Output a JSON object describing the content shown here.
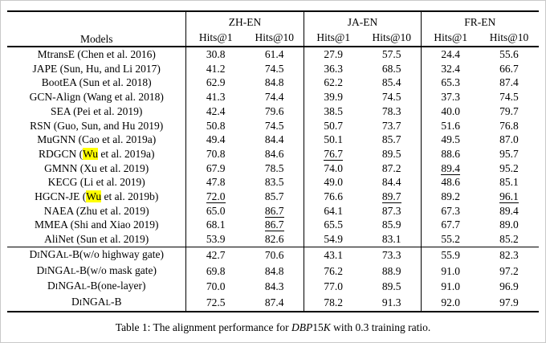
{
  "table": {
    "header": {
      "models_label": "Models",
      "groups": [
        {
          "label": "ZH-EN"
        },
        {
          "label": "JA-EN"
        },
        {
          "label": "FR-EN"
        }
      ],
      "metric_labels": [
        "Hits@1",
        "Hits@10"
      ]
    },
    "highlight_color": "#ffff00",
    "sections": [
      {
        "name": "baselines",
        "rows": [
          {
            "label_parts": [
              {
                "t": "MtransE (Chen et al. 2016)"
              }
            ],
            "cells": [
              {
                "v": "30.8"
              },
              {
                "v": "61.4"
              },
              {
                "v": "27.9"
              },
              {
                "v": "57.5"
              },
              {
                "v": "24.4"
              },
              {
                "v": "55.6"
              }
            ]
          },
          {
            "label_parts": [
              {
                "t": "JAPE (Sun, Hu, and Li 2017)"
              }
            ],
            "cells": [
              {
                "v": "41.2"
              },
              {
                "v": "74.5"
              },
              {
                "v": "36.3"
              },
              {
                "v": "68.5"
              },
              {
                "v": "32.4"
              },
              {
                "v": "66.7"
              }
            ]
          },
          {
            "label_parts": [
              {
                "t": "BootEA (Sun et al. 2018)"
              }
            ],
            "cells": [
              {
                "v": "62.9"
              },
              {
                "v": "84.8"
              },
              {
                "v": "62.2"
              },
              {
                "v": "85.4"
              },
              {
                "v": "65.3"
              },
              {
                "v": "87.4"
              }
            ]
          },
          {
            "label_parts": [
              {
                "t": "GCN-Align (Wang et al. 2018)"
              }
            ],
            "cells": [
              {
                "v": "41.3"
              },
              {
                "v": "74.4"
              },
              {
                "v": "39.9"
              },
              {
                "v": "74.5"
              },
              {
                "v": "37.3"
              },
              {
                "v": "74.5"
              }
            ]
          },
          {
            "label_parts": [
              {
                "t": "SEA (Pei et al. 2019)"
              }
            ],
            "cells": [
              {
                "v": "42.4"
              },
              {
                "v": "79.6"
              },
              {
                "v": "38.5"
              },
              {
                "v": "78.3"
              },
              {
                "v": "40.0"
              },
              {
                "v": "79.7"
              }
            ]
          },
          {
            "label_parts": [
              {
                "t": "RSN  (Guo, Sun, and Hu 2019)"
              }
            ],
            "cells": [
              {
                "v": "50.8"
              },
              {
                "v": "74.5"
              },
              {
                "v": "50.7"
              },
              {
                "v": "73.7"
              },
              {
                "v": "51.6"
              },
              {
                "v": "76.8"
              }
            ]
          },
          {
            "label_parts": [
              {
                "t": "MuGNN  (Cao et al. 2019a)"
              }
            ],
            "cells": [
              {
                "v": "49.4"
              },
              {
                "v": "84.4"
              },
              {
                "v": "50.1"
              },
              {
                "v": "85.7"
              },
              {
                "v": "49.5"
              },
              {
                "v": "87.0"
              }
            ]
          },
          {
            "label_parts": [
              {
                "t": "RDGCN ("
              },
              {
                "t": "Wu",
                "hl": true
              },
              {
                "t": " et al. 2019a)"
              }
            ],
            "cells": [
              {
                "v": "70.8"
              },
              {
                "v": "84.6"
              },
              {
                "v": "76.7",
                "ul": true
              },
              {
                "v": "89.5"
              },
              {
                "v": "88.6"
              },
              {
                "v": "95.7"
              }
            ]
          },
          {
            "label_parts": [
              {
                "t": "GMNN  (Xu et al. 2019)"
              }
            ],
            "cells": [
              {
                "v": "67.9"
              },
              {
                "v": "78.5"
              },
              {
                "v": "74.0"
              },
              {
                "v": "87.2"
              },
              {
                "v": "89.4",
                "ul": true
              },
              {
                "v": "95.2"
              }
            ]
          },
          {
            "label_parts": [
              {
                "t": "KECG  (Li et al. 2019)"
              }
            ],
            "cells": [
              {
                "v": "47.8"
              },
              {
                "v": "83.5"
              },
              {
                "v": "49.0"
              },
              {
                "v": "84.4"
              },
              {
                "v": "48.6"
              },
              {
                "v": "85.1"
              }
            ]
          },
          {
            "label_parts": [
              {
                "t": "HGCN-JE ("
              },
              {
                "t": "Wu",
                "hl": true
              },
              {
                "t": " et al. 2019b)"
              }
            ],
            "cells": [
              {
                "v": "72.0",
                "ul": true
              },
              {
                "v": "85.7"
              },
              {
                "v": "76.6"
              },
              {
                "v": "89.7",
                "ul": true
              },
              {
                "v": "89.2"
              },
              {
                "v": "96.1",
                "ul": true
              }
            ]
          },
          {
            "label_parts": [
              {
                "t": "NAEA (Zhu et al. 2019)"
              }
            ],
            "cells": [
              {
                "v": "65.0"
              },
              {
                "v": "86.7",
                "ul": true
              },
              {
                "v": "64.1"
              },
              {
                "v": "87.3"
              },
              {
                "v": "67.3"
              },
              {
                "v": "89.4"
              }
            ]
          },
          {
            "label_parts": [
              {
                "t": "MMEA  (Shi and Xiao 2019)"
              }
            ],
            "cells": [
              {
                "v": "68.1"
              },
              {
                "v": "86.7",
                "ul": true
              },
              {
                "v": "65.5"
              },
              {
                "v": "85.9"
              },
              {
                "v": "67.7"
              },
              {
                "v": "89.0"
              }
            ]
          },
          {
            "label_parts": [
              {
                "t": "AliNet (Sun et al. 2019)"
              }
            ],
            "cells": [
              {
                "v": "53.9"
              },
              {
                "v": "82.6"
              },
              {
                "v": "54.9"
              },
              {
                "v": "83.1"
              },
              {
                "v": "55.2"
              },
              {
                "v": "85.2"
              }
            ]
          }
        ]
      },
      {
        "name": "dingal",
        "rows": [
          {
            "label_parts": [
              {
                "t": "D"
              },
              {
                "t": "I",
                "sc": true
              },
              {
                "t": "NGA"
              },
              {
                "t": "L",
                "sc": true
              },
              {
                "t": "-B(w/o highway gate)"
              }
            ],
            "cells": [
              {
                "v": "42.7"
              },
              {
                "v": "70.6"
              },
              {
                "v": "43.1"
              },
              {
                "v": "73.3"
              },
              {
                "v": "55.9"
              },
              {
                "v": "82.3"
              }
            ]
          },
          {
            "label_parts": [
              {
                "t": "D"
              },
              {
                "t": "I",
                "sc": true
              },
              {
                "t": "NGA"
              },
              {
                "t": "L",
                "sc": true
              },
              {
                "t": "-B(w/o mask gate)"
              }
            ],
            "cells": [
              {
                "v": "69.8"
              },
              {
                "v": "84.8"
              },
              {
                "v": "76.2"
              },
              {
                "v": "88.9"
              },
              {
                "v": "91.0"
              },
              {
                "v": "97.2"
              }
            ]
          },
          {
            "label_parts": [
              {
                "t": "D"
              },
              {
                "t": "I",
                "sc": true
              },
              {
                "t": "NGA"
              },
              {
                "t": "L",
                "sc": true
              },
              {
                "t": "-B(one-layer)"
              }
            ],
            "cells": [
              {
                "v": "70.0"
              },
              {
                "v": "84.3"
              },
              {
                "v": "77.0"
              },
              {
                "v": "89.5"
              },
              {
                "v": "91.0"
              },
              {
                "v": "96.9"
              }
            ]
          },
          {
            "label_parts": [
              {
                "t": "D"
              },
              {
                "t": "I",
                "sc": true
              },
              {
                "t": "NGA"
              },
              {
                "t": "L",
                "sc": true
              },
              {
                "t": "-B"
              }
            ],
            "cells": [
              {
                "v": "72.5",
                "b": true
              },
              {
                "v": "87.4",
                "b": true
              },
              {
                "v": "78.2",
                "b": true
              },
              {
                "v": "91.3",
                "b": true
              },
              {
                "v": "92.0",
                "b": true
              },
              {
                "v": "97.9",
                "b": true
              }
            ]
          }
        ]
      }
    ]
  },
  "caption": {
    "parts": [
      {
        "t": "Table 1: The alignment performance for "
      },
      {
        "t": "DBP",
        "i": true
      },
      {
        "t": "15"
      },
      {
        "t": "K",
        "i": true
      },
      {
        "t": " with 0.3 training ratio."
      }
    ]
  }
}
